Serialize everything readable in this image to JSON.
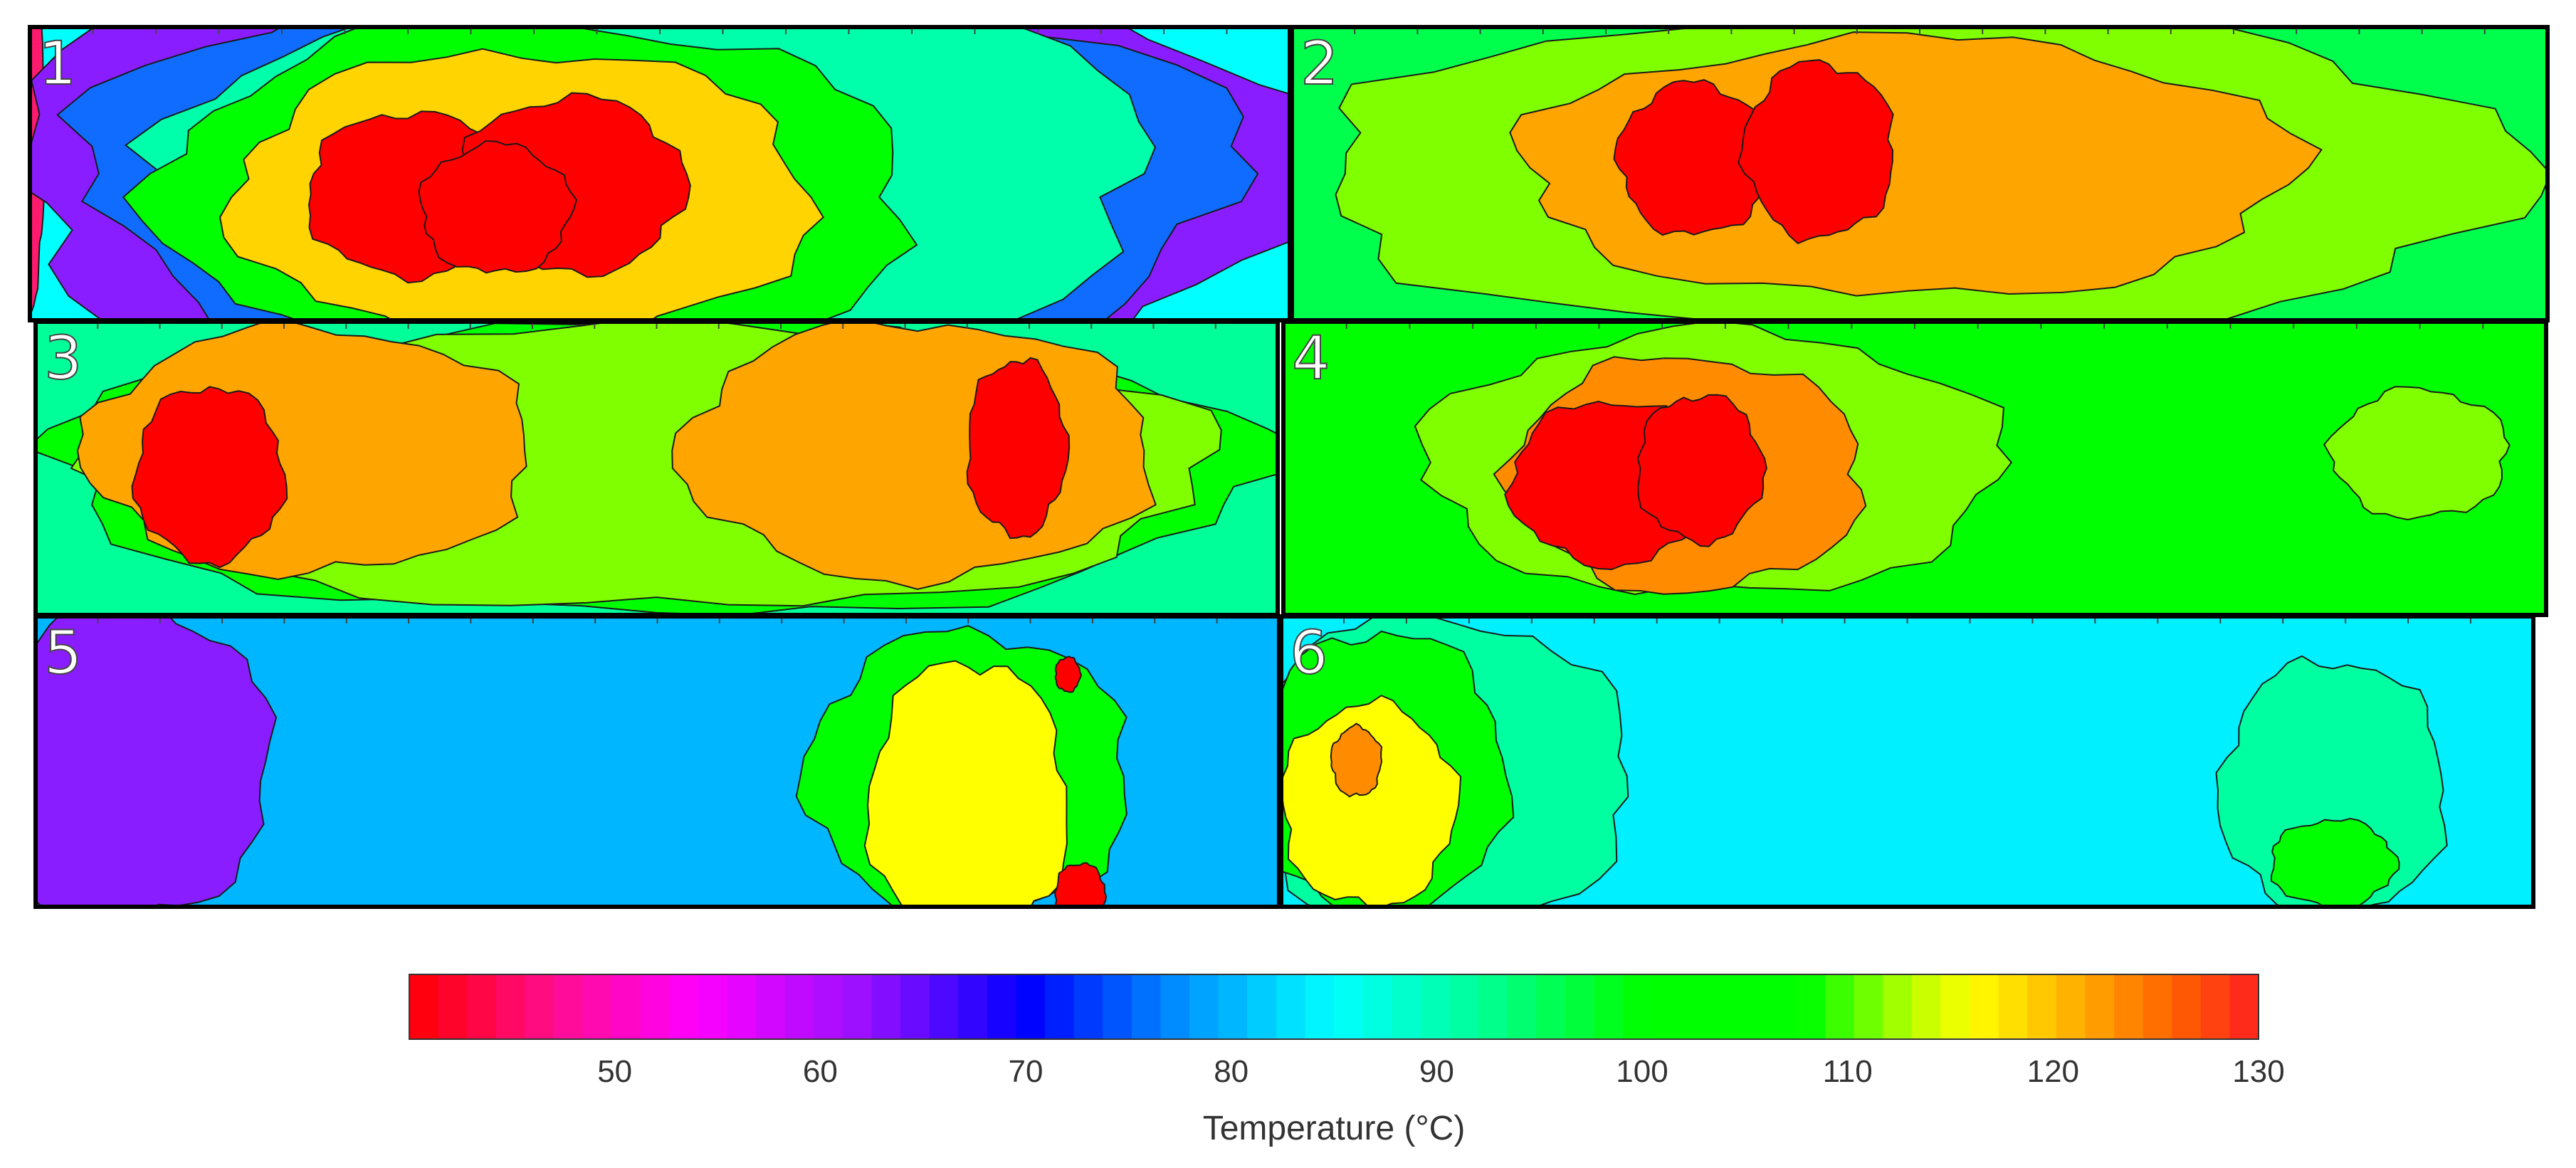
{
  "chart_data": {
    "type": "heatmap",
    "title": "",
    "panels": [
      {
        "label": "1",
        "background_value": 85,
        "contours": [
          {
            "level": 44,
            "color": "#ff1a6e",
            "blobs": [
              [
                0.0,
                0.35,
                0.012,
                0.6
              ]
            ]
          },
          {
            "level": 65,
            "color": "#8a1dff",
            "blobs": [
              [
                0.5,
                0.5,
                0.52,
                0.8
              ]
            ]
          },
          {
            "level": 76,
            "color": "#0f6cff",
            "blobs": [
              [
                0.5,
                0.5,
                0.46,
                0.72
              ]
            ]
          },
          {
            "level": 88,
            "color": "#00ffaa",
            "blobs": [
              [
                0.5,
                0.5,
                0.39,
                0.68
              ]
            ]
          },
          {
            "level": 100,
            "color": "#00ff00",
            "blobs": [
              [
                0.4,
                0.58,
                0.3,
                0.6
              ]
            ]
          },
          {
            "level": 114,
            "color": "#ffd400",
            "blobs": [
              [
                0.39,
                0.58,
                0.23,
                0.5
              ]
            ]
          },
          {
            "level": 128,
            "color": "#ff0000",
            "blobs": [
              [
                0.3,
                0.57,
                0.08,
                0.28
              ],
              [
                0.43,
                0.54,
                0.09,
                0.3
              ],
              [
                0.37,
                0.62,
                0.06,
                0.22
              ]
            ]
          }
        ]
      },
      {
        "label": "2",
        "background_value": 96,
        "contours": [
          {
            "level": 108,
            "color": "#7fff00",
            "blobs": [
              [
                0.5,
                0.5,
                0.48,
                0.56
              ]
            ]
          },
          {
            "level": 118,
            "color": "#ffa500",
            "blobs": [
              [
                0.49,
                0.48,
                0.31,
                0.44
              ]
            ]
          },
          {
            "level": 128,
            "color": "#ff0000",
            "blobs": [
              [
                0.32,
                0.45,
                0.06,
                0.26
              ],
              [
                0.42,
                0.42,
                0.06,
                0.3
              ]
            ]
          }
        ]
      },
      {
        "label": "3",
        "background_value": 92,
        "contours": [
          {
            "level": 100,
            "color": "#00ff00",
            "blobs": [
              [
                0.5,
                0.5,
                0.49,
                0.5
              ]
            ]
          },
          {
            "level": 108,
            "color": "#7fff00",
            "blobs": [
              [
                0.5,
                0.5,
                0.45,
                0.48
              ]
            ]
          },
          {
            "level": 118,
            "color": "#ffa500",
            "blobs": [
              [
                0.22,
                0.44,
                0.18,
                0.42
              ],
              [
                0.71,
                0.44,
                0.19,
                0.44
              ]
            ]
          },
          {
            "level": 128,
            "color": "#ff0000",
            "blobs": [
              [
                0.14,
                0.52,
                0.06,
                0.3
              ],
              [
                0.79,
                0.43,
                0.04,
                0.3
              ]
            ]
          }
        ]
      },
      {
        "label": "4",
        "background_value": 100,
        "contours": [
          {
            "level": 108,
            "color": "#7fff00",
            "blobs": [
              [
                0.34,
                0.48,
                0.23,
                0.45
              ],
              [
                0.9,
                0.45,
                0.07,
                0.22
              ]
            ]
          },
          {
            "level": 120,
            "color": "#ff8c00",
            "blobs": [
              [
                0.32,
                0.52,
                0.14,
                0.4
              ]
            ]
          },
          {
            "level": 128,
            "color": "#ff0000",
            "blobs": [
              [
                0.26,
                0.55,
                0.08,
                0.28
              ],
              [
                0.33,
                0.5,
                0.05,
                0.25
              ]
            ]
          }
        ]
      },
      {
        "label": "5",
        "background_value": 80,
        "contours": [
          {
            "level": 66,
            "color": "#8a1dff",
            "blobs": [
              [
                0.07,
                0.5,
                0.12,
                0.55
              ]
            ]
          },
          {
            "level": 100,
            "color": "#00ff00",
            "blobs": [
              [
                0.75,
                0.55,
                0.13,
                0.5
              ]
            ]
          },
          {
            "level": 114,
            "color": "#ffff00",
            "blobs": [
              [
                0.75,
                0.65,
                0.08,
                0.5
              ]
            ]
          },
          {
            "level": 128,
            "color": "#ff0000",
            "blobs": [
              [
                0.84,
                0.95,
                0.02,
                0.1
              ],
              [
                0.83,
                0.2,
                0.01,
                0.06
              ]
            ]
          }
        ]
      },
      {
        "label": "6",
        "background_value": 84,
        "contours": [
          {
            "level": 90,
            "color": "#00ffa0",
            "blobs": [
              [
                0.12,
                0.55,
                0.16,
                0.55
              ],
              [
                0.84,
                0.6,
                0.09,
                0.45
              ]
            ]
          },
          {
            "level": 100,
            "color": "#00ff00",
            "blobs": [
              [
                0.08,
                0.55,
                0.1,
                0.5
              ],
              [
                0.84,
                0.85,
                0.05,
                0.15
              ]
            ]
          },
          {
            "level": 114,
            "color": "#ffff00",
            "blobs": [
              [
                0.07,
                0.65,
                0.07,
                0.35
              ]
            ]
          },
          {
            "level": 120,
            "color": "#ff8c00",
            "blobs": [
              [
                0.06,
                0.5,
                0.02,
                0.12
              ]
            ]
          }
        ]
      }
    ],
    "colorbar": {
      "label": "Temperature (°C)",
      "range": [
        40,
        130
      ],
      "ticks": [
        50,
        60,
        70,
        80,
        90,
        100,
        110,
        120,
        130
      ],
      "stops": [
        [
          40,
          "#ff0000"
        ],
        [
          47,
          "#ff0d8e"
        ],
        [
          54,
          "#ff00ff"
        ],
        [
          62,
          "#9a10ff"
        ],
        [
          70,
          "#0000ff"
        ],
        [
          78,
          "#0099ff"
        ],
        [
          85,
          "#00ffff"
        ],
        [
          92,
          "#00ff99"
        ],
        [
          100,
          "#00ff00"
        ],
        [
          108,
          "#00ff00"
        ],
        [
          113,
          "#b6ff00"
        ],
        [
          116,
          "#ffff00"
        ],
        [
          121,
          "#ffb000"
        ],
        [
          126,
          "#ff6000"
        ],
        [
          130,
          "#ff2020"
        ]
      ]
    }
  }
}
